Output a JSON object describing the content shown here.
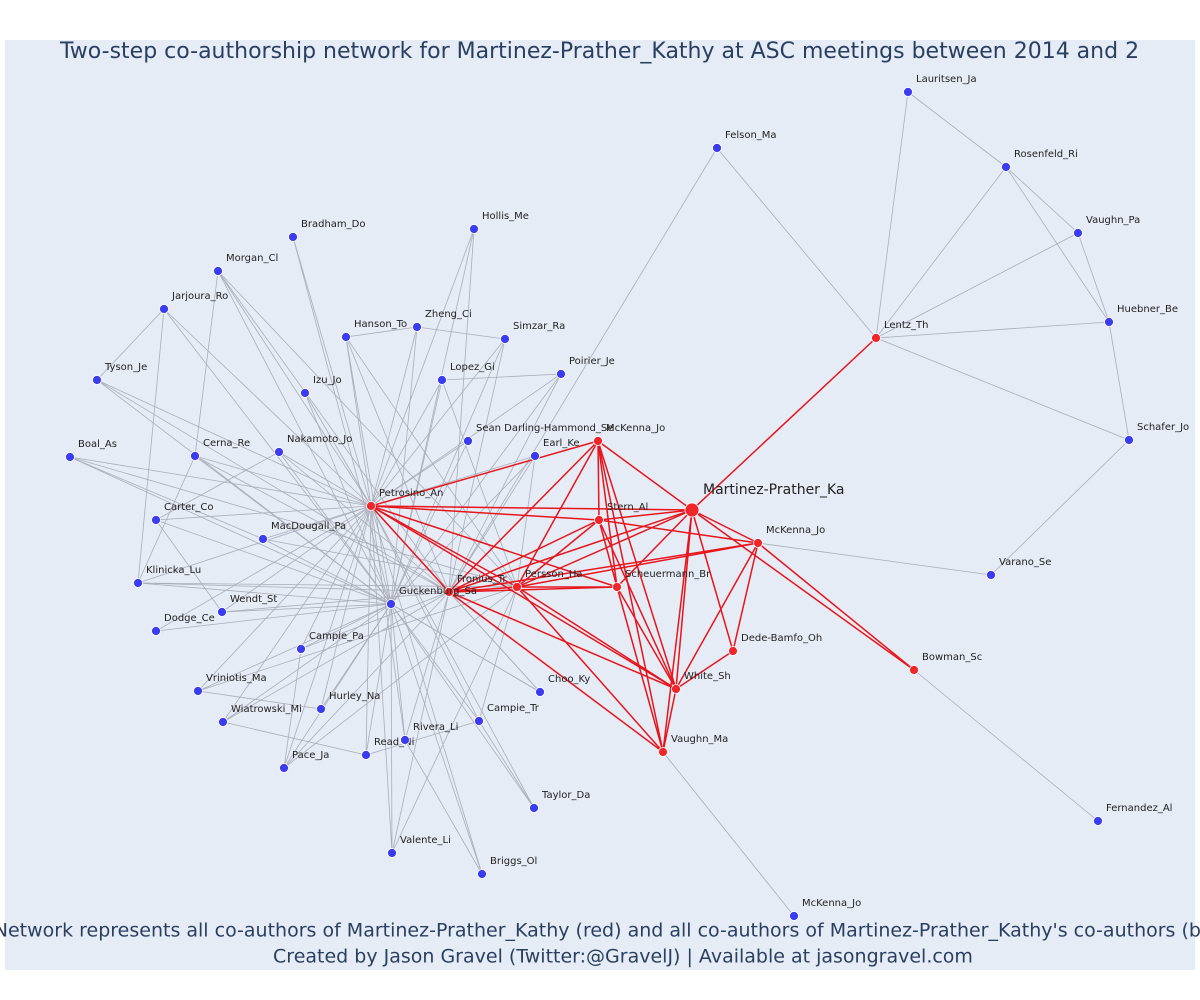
{
  "title": "Two-step co-authorship network for Martinez-Prather_Kathy at ASC meetings between 2014 and 2",
  "footnote": [
    "Network represents all co-authors of Martinez-Prather_Kathy (red) and all co-authors of Martinez-Prather_Kathy's co-authors (bl",
    "Created by Jason Gravel (Twitter:@GravelJ) | Available at jasongravel.com"
  ],
  "nodes": [
    {
      "label": "Martinez-Prather_Ka",
      "color": "red"
    },
    {
      "label": "McKenna_Jo",
      "color": "red"
    },
    {
      "label": "Stern_Al",
      "color": "red"
    },
    {
      "label": "McKenna_Jo",
      "color": "red"
    },
    {
      "label": "Petrosino_An",
      "color": "red"
    },
    {
      "label": "Fronius_Tr",
      "color": "red"
    },
    {
      "label": "Persson_Ha",
      "color": "red"
    },
    {
      "label": "Scheuermann_Br",
      "color": "red"
    },
    {
      "label": "Dede-Bamfo_Oh",
      "color": "red"
    },
    {
      "label": "White_Sh",
      "color": "red"
    },
    {
      "label": "Vaughn_Ma",
      "color": "red"
    },
    {
      "label": "Bowman_Sc",
      "color": "red"
    },
    {
      "label": "Lentz_Th",
      "color": "red"
    },
    {
      "label": "Lauritsen_Ja",
      "color": "blue"
    },
    {
      "label": "Rosenfeld_Ri",
      "color": "blue"
    },
    {
      "label": "Vaughn_Pa",
      "color": "blue"
    },
    {
      "label": "Huebner_Be",
      "color": "blue"
    },
    {
      "label": "Schafer_Jo",
      "color": "blue"
    },
    {
      "label": "Varano_Se",
      "color": "blue"
    },
    {
      "label": "Fernandez_Al",
      "color": "blue"
    },
    {
      "label": "McKenna_Jo",
      "color": "blue"
    },
    {
      "label": "Felson_Ma",
      "color": "blue"
    },
    {
      "label": "Hollis_Me",
      "color": "blue"
    },
    {
      "label": "Bradham_Do",
      "color": "blue"
    },
    {
      "label": "Morgan_Cl",
      "color": "blue"
    },
    {
      "label": "Jarjoura_Ro",
      "color": "blue"
    },
    {
      "label": "Tyson_Je",
      "color": "blue"
    },
    {
      "label": "Boal_As",
      "color": "blue"
    },
    {
      "label": "Cerna_Re",
      "color": "blue"
    },
    {
      "label": "Carter_Co",
      "color": "blue"
    },
    {
      "label": "Klinicka_Lu",
      "color": "blue"
    },
    {
      "label": "Dodge_Ce",
      "color": "blue"
    },
    {
      "label": "Wendt_St",
      "color": "blue"
    },
    {
      "label": "MacDougall_Pa",
      "color": "blue"
    },
    {
      "label": "Nakamoto_Jo",
      "color": "blue"
    },
    {
      "label": "Izu_Jo",
      "color": "blue"
    },
    {
      "label": "Hanson_To",
      "color": "blue"
    },
    {
      "label": "Zheng_Ci",
      "color": "blue"
    },
    {
      "label": "Simzar_Ra",
      "color": "blue"
    },
    {
      "label": "Lopez_Gi",
      "color": "blue"
    },
    {
      "label": "Poirier_Je",
      "color": "blue"
    },
    {
      "label": "Sean Darling-Hammond_Se",
      "color": "blue"
    },
    {
      "label": "Earl_Ke",
      "color": "blue"
    },
    {
      "label": "Guckenburg_Sa",
      "color": "blue"
    },
    {
      "label": "Campie_Pa",
      "color": "blue"
    },
    {
      "label": "Vriniotis_Ma",
      "color": "blue"
    },
    {
      "label": "Wiatrowski_Mi",
      "color": "blue"
    },
    {
      "label": "Hurley_Na",
      "color": "blue"
    },
    {
      "label": "Pace_Ja",
      "color": "blue"
    },
    {
      "label": "Read_Ni",
      "color": "blue"
    },
    {
      "label": "Rivera_Li",
      "color": "blue"
    },
    {
      "label": "Campie_Tr",
      "color": "blue"
    },
    {
      "label": "Choo_Ky",
      "color": "blue"
    },
    {
      "label": "Taylor_Da",
      "color": "blue"
    },
    {
      "label": "Valente_Li",
      "color": "blue"
    },
    {
      "label": "Briggs_Ol",
      "color": "blue"
    }
  ]
}
